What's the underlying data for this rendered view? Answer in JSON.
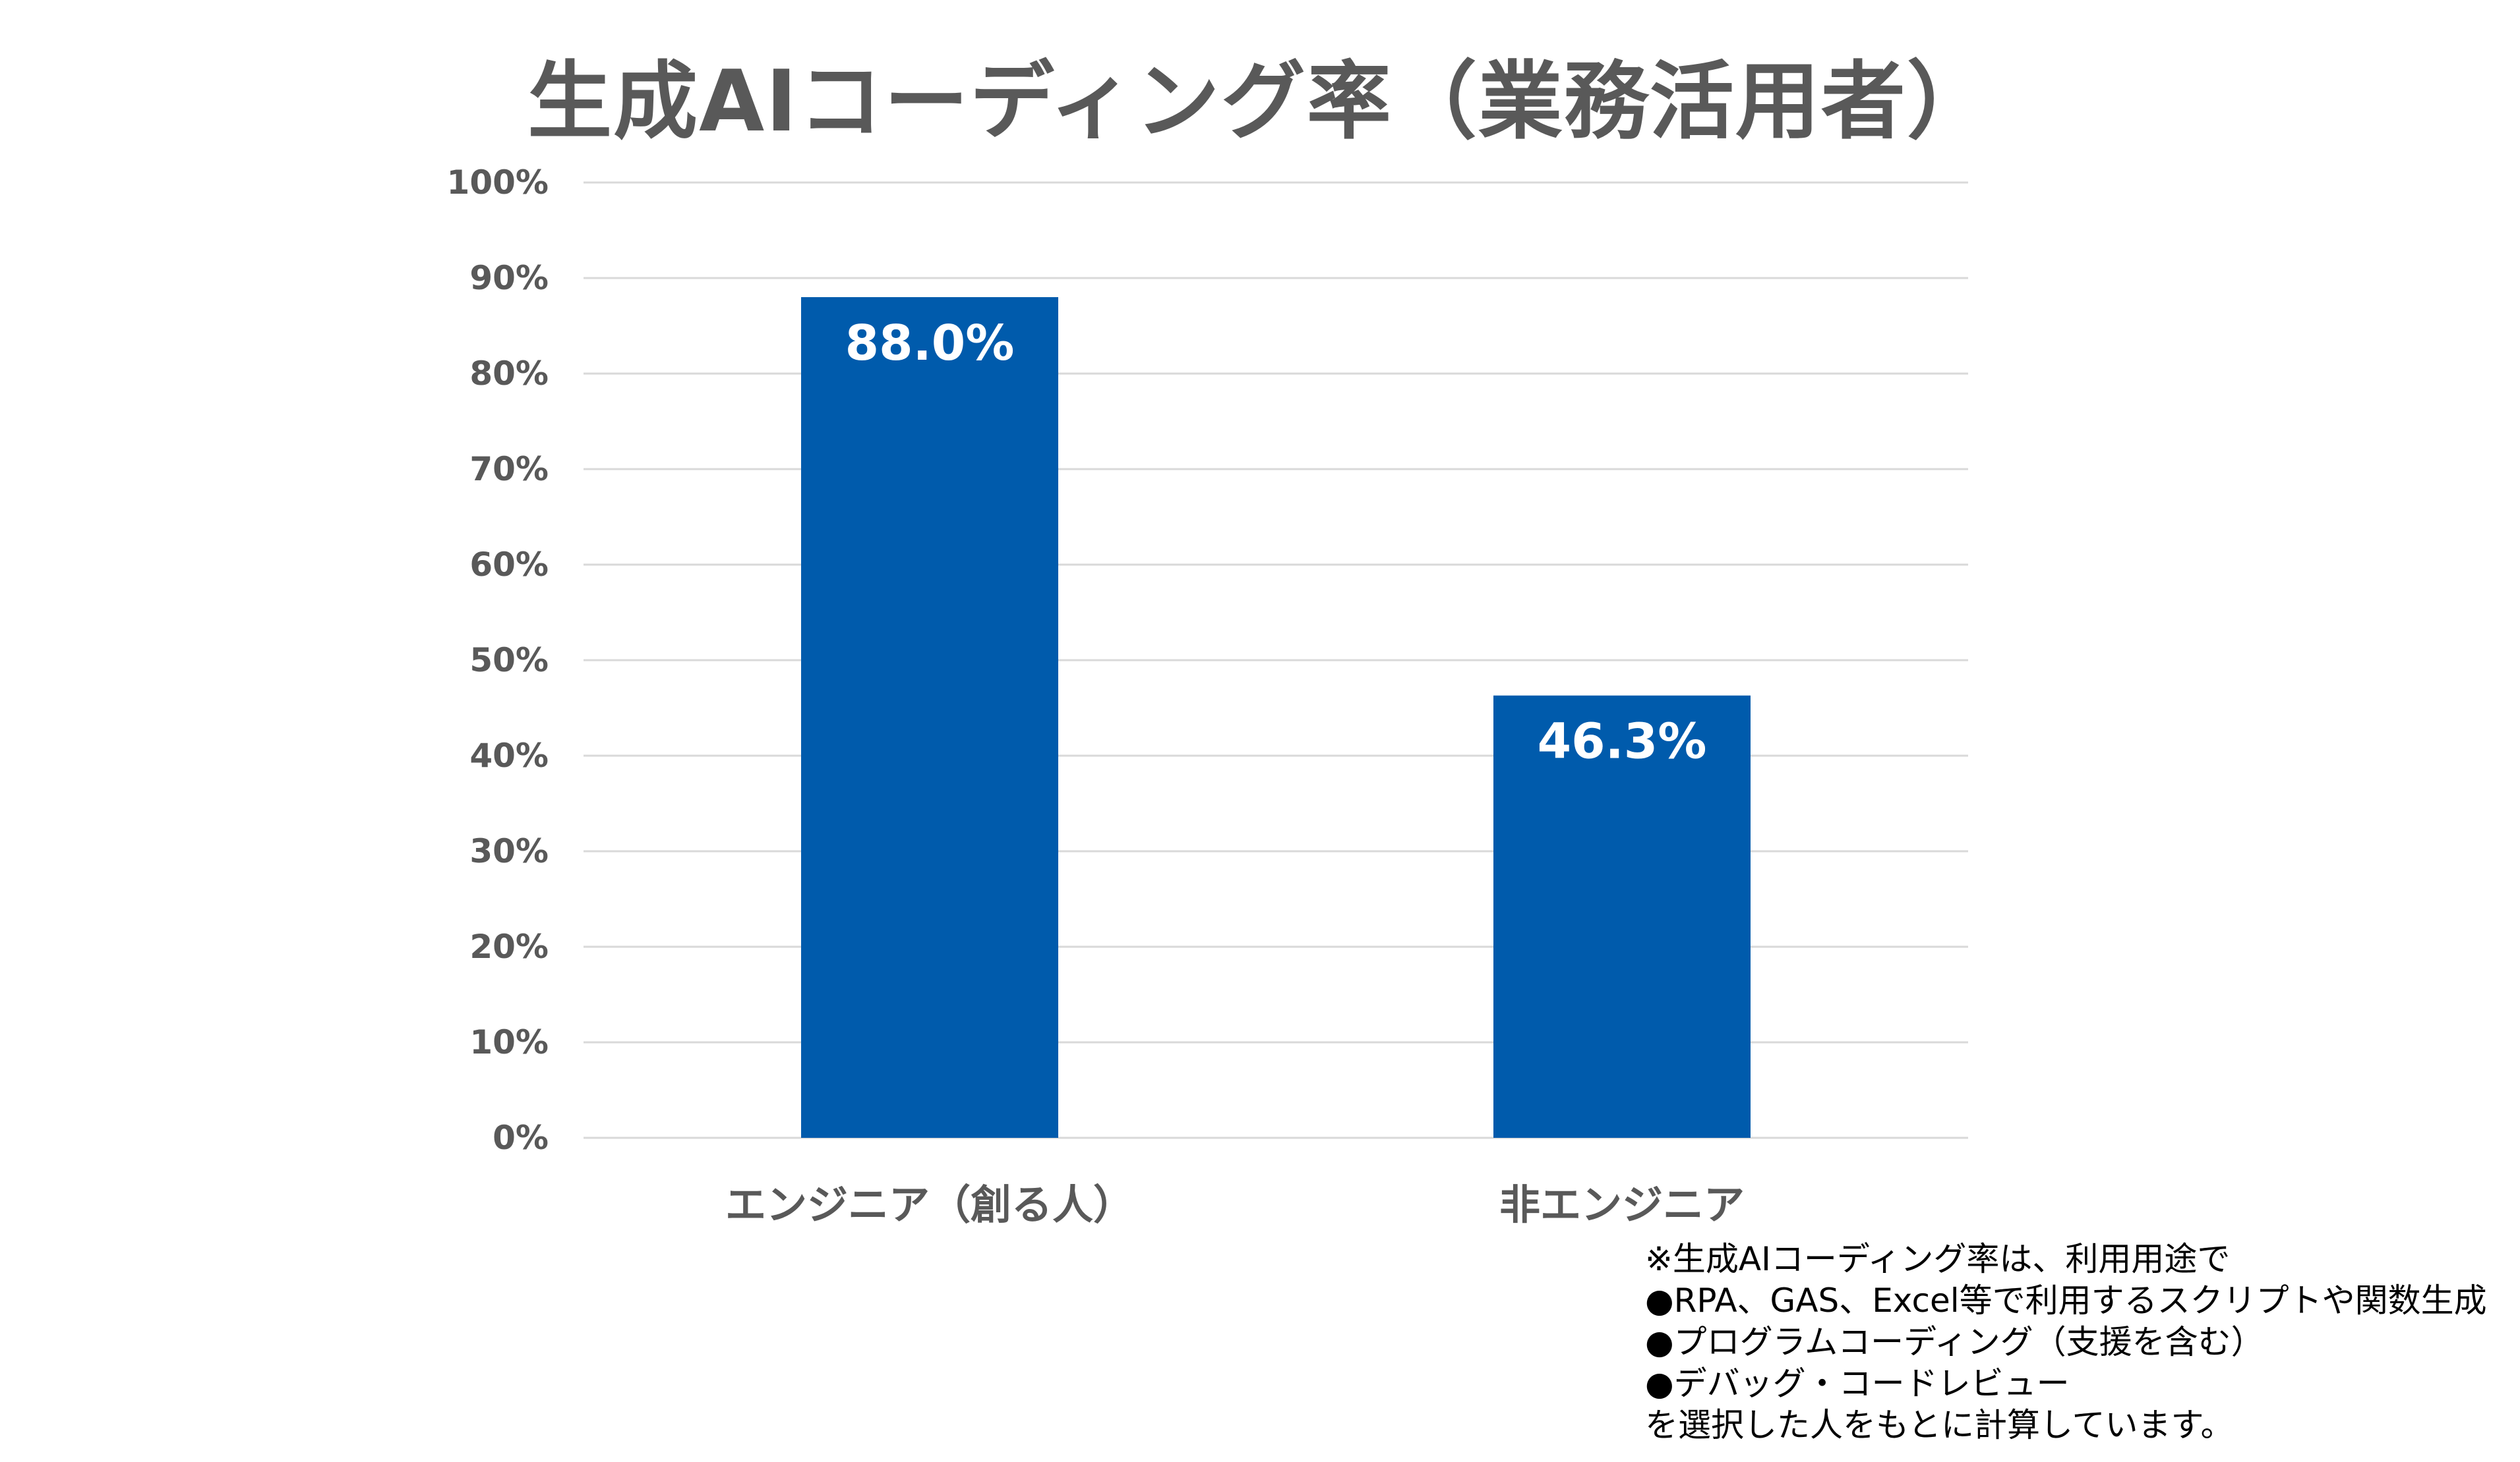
{
  "chart_data": {
    "type": "bar",
    "title": "生成AIコーディング率（業務活用者）",
    "categories": [
      "エンジニア（創る人）",
      "非エンジニア"
    ],
    "values": [
      88.0,
      46.3
    ],
    "data_labels": [
      "88.0%",
      "46.3%"
    ],
    "ylim": [
      0,
      100
    ],
    "yticks": [
      0,
      10,
      20,
      30,
      40,
      50,
      60,
      70,
      80,
      90,
      100
    ],
    "ytick_labels": [
      "0%",
      "10%",
      "20%",
      "30%",
      "40%",
      "50%",
      "60%",
      "70%",
      "80%",
      "90%",
      "100%"
    ],
    "grid": true,
    "legend": "none",
    "bar_color": "#005BAC",
    "grid_color": "#D9D9D9",
    "text_color": "#595959"
  },
  "footnote": {
    "lines": [
      "※生成AIコーディング率は、利用用途で",
      "●RPA、GAS、Excel等で利用するスクリプトや関数生成",
      "●プログラムコーディング（支援を含む）",
      "●デバッグ・コードレビュー",
      "を選択した人をもとに計算しています。"
    ]
  }
}
